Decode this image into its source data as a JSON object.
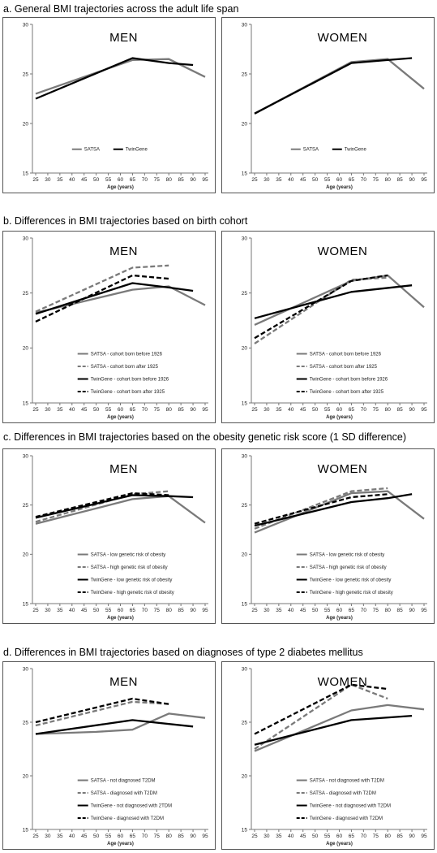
{
  "sections": [
    {
      "title": "a. General BMI trajectories across the adult life span"
    },
    {
      "title": "b. Differences in BMI trajectories based on birth cohort"
    },
    {
      "title": "c. Differences in BMI trajectories based on the obesity genetic risk score (1 SD difference)"
    },
    {
      "title": "d. Differences in BMI trajectories  based on diagnoses of type 2 diabetes mellitus"
    }
  ],
  "style_colors": {
    "gray": "#7a7a7a",
    "black": "#000000",
    "frame": "#555555"
  },
  "chart_data": [
    {
      "id": "a-men",
      "type": "line",
      "panel_label": "MEN",
      "xlabel": "Age (years)",
      "ylabel": "",
      "x": [
        25,
        30,
        35,
        40,
        45,
        50,
        55,
        60,
        65,
        70,
        75,
        80,
        85,
        90,
        95
      ],
      "ylim": [
        15,
        30
      ],
      "yticks": [
        15,
        20,
        25,
        30
      ],
      "legend_position": "bottom",
      "legend_layout": "row",
      "series": [
        {
          "name": "SATSA",
          "color": "gray",
          "dash": "solid",
          "points": [
            [
              25,
              23.0
            ],
            [
              65,
              26.4
            ],
            [
              80,
              26.5
            ],
            [
              95,
              24.7
            ]
          ]
        },
        {
          "name": "TwinGene",
          "color": "black",
          "dash": "solid",
          "points": [
            [
              25,
              22.5
            ],
            [
              65,
              26.6
            ],
            [
              80,
              26.1
            ],
            [
              90,
              25.9
            ]
          ]
        }
      ]
    },
    {
      "id": "a-women",
      "type": "line",
      "panel_label": "WOMEN",
      "xlabel": "Age (years)",
      "ylabel": "",
      "x": [
        25,
        30,
        35,
        40,
        45,
        50,
        55,
        60,
        65,
        70,
        75,
        80,
        85,
        90,
        95
      ],
      "ylim": [
        15,
        30
      ],
      "yticks": [
        15,
        20,
        25,
        30
      ],
      "legend_position": "bottom",
      "legend_layout": "row",
      "series": [
        {
          "name": "SATSA",
          "color": "gray",
          "dash": "solid",
          "points": [
            [
              25,
              21.0
            ],
            [
              65,
              26.2
            ],
            [
              80,
              26.5
            ],
            [
              95,
              23.5
            ]
          ]
        },
        {
          "name": "TwinGene",
          "color": "black",
          "dash": "solid",
          "points": [
            [
              25,
              21.0
            ],
            [
              65,
              26.1
            ],
            [
              80,
              26.4
            ],
            [
              90,
              26.6
            ]
          ]
        }
      ]
    },
    {
      "id": "b-men",
      "type": "line",
      "panel_label": "MEN",
      "xlabel": "Age (years)",
      "ylabel": "",
      "x": [
        25,
        30,
        35,
        40,
        45,
        50,
        55,
        60,
        65,
        70,
        75,
        80,
        85,
        90,
        95
      ],
      "ylim": [
        15,
        30
      ],
      "yticks": [
        15,
        20,
        25,
        30
      ],
      "legend_position": "bottom",
      "legend_layout": "column",
      "series": [
        {
          "name": "SATSA - cohort born before 1926",
          "color": "gray",
          "dash": "solid",
          "points": [
            [
              25,
              23.2
            ],
            [
              65,
              25.3
            ],
            [
              80,
              25.6
            ],
            [
              95,
              23.9
            ]
          ]
        },
        {
          "name": "SATSA - cohort born after 1925",
          "color": "gray",
          "dash": "dashed",
          "points": [
            [
              25,
              23.3
            ],
            [
              65,
              27.3
            ],
            [
              80,
              27.5
            ]
          ]
        },
        {
          "name": "TwinGene - cohort born before 1926",
          "color": "black",
          "dash": "solid",
          "points": [
            [
              25,
              23.1
            ],
            [
              65,
              25.9
            ],
            [
              80,
              25.5
            ],
            [
              90,
              25.2
            ]
          ]
        },
        {
          "name": "TwinGene - cohort born after 1925",
          "color": "black",
          "dash": "dashed",
          "points": [
            [
              25,
              22.4
            ],
            [
              65,
              26.6
            ],
            [
              80,
              26.3
            ]
          ]
        }
      ]
    },
    {
      "id": "b-women",
      "type": "line",
      "panel_label": "WOMEN",
      "xlabel": "Age (years)",
      "ylabel": "",
      "x": [
        25,
        30,
        35,
        40,
        45,
        50,
        55,
        60,
        65,
        70,
        75,
        80,
        85,
        90,
        95
      ],
      "ylim": [
        15,
        30
      ],
      "yticks": [
        15,
        20,
        25,
        30
      ],
      "legend_position": "bottom",
      "legend_layout": "column",
      "series": [
        {
          "name": "SATSA - cohort born before 1926",
          "color": "gray",
          "dash": "solid",
          "points": [
            [
              25,
              22.1
            ],
            [
              65,
              26.1
            ],
            [
              80,
              26.6
            ],
            [
              95,
              23.7
            ]
          ]
        },
        {
          "name": "SATSA - cohort born after 1925",
          "color": "gray",
          "dash": "dashed",
          "points": [
            [
              25,
              20.4
            ],
            [
              65,
              26.2
            ],
            [
              80,
              26.4
            ]
          ]
        },
        {
          "name": "TwinGene - cohort born before 1926",
          "color": "black",
          "dash": "solid",
          "points": [
            [
              25,
              22.7
            ],
            [
              65,
              25.1
            ],
            [
              90,
              25.7
            ]
          ]
        },
        {
          "name": "TwinGene - cohort born after 1925",
          "color": "black",
          "dash": "dashed",
          "points": [
            [
              25,
              20.9
            ],
            [
              65,
              26.1
            ],
            [
              80,
              26.6
            ]
          ]
        }
      ]
    },
    {
      "id": "c-men",
      "type": "line",
      "panel_label": "MEN",
      "xlabel": "Age (years)",
      "ylabel": "",
      "x": [
        25,
        30,
        35,
        40,
        45,
        50,
        55,
        60,
        65,
        70,
        75,
        80,
        85,
        90,
        95
      ],
      "ylim": [
        15,
        30
      ],
      "yticks": [
        15,
        20,
        25,
        30
      ],
      "legend_position": "bottom",
      "legend_layout": "column",
      "series": [
        {
          "name": "SATSA - low genetic risk of obesity",
          "color": "gray",
          "dash": "solid",
          "points": [
            [
              25,
              23.1
            ],
            [
              65,
              25.6
            ],
            [
              80,
              25.9
            ],
            [
              95,
              23.2
            ]
          ]
        },
        {
          "name": "SATSA - high genetic risk of obesity",
          "color": "gray",
          "dash": "dashed",
          "points": [
            [
              25,
              23.3
            ],
            [
              65,
              26.1
            ],
            [
              80,
              26.4
            ]
          ]
        },
        {
          "name": "TwinGene - low genetic risk of obesity",
          "color": "black",
          "dash": "solid",
          "points": [
            [
              25,
              23.7
            ],
            [
              65,
              26.0
            ],
            [
              80,
              25.9
            ],
            [
              90,
              25.8
            ]
          ]
        },
        {
          "name": "TwinGene - high genetic risk of obesity",
          "color": "black",
          "dash": "dashed",
          "points": [
            [
              25,
              23.8
            ],
            [
              65,
              26.2
            ],
            [
              80,
              26.0
            ]
          ]
        }
      ]
    },
    {
      "id": "c-women",
      "type": "line",
      "panel_label": "WOMEN",
      "xlabel": "Age (years)",
      "ylabel": "",
      "x": [
        25,
        30,
        35,
        40,
        45,
        50,
        55,
        60,
        65,
        70,
        75,
        80,
        85,
        90,
        95
      ],
      "ylim": [
        15,
        30
      ],
      "yticks": [
        15,
        20,
        25,
        30
      ],
      "legend_position": "bottom",
      "legend_layout": "column",
      "series": [
        {
          "name": "SATSA - low genetic risk of obesity",
          "color": "gray",
          "dash": "solid",
          "points": [
            [
              25,
              22.2
            ],
            [
              65,
              26.2
            ],
            [
              80,
              26.4
            ],
            [
              95,
              23.6
            ]
          ]
        },
        {
          "name": "SATSA - high genetic risk of obesity",
          "color": "gray",
          "dash": "dashed",
          "points": [
            [
              25,
              22.6
            ],
            [
              65,
              26.4
            ],
            [
              80,
              26.7
            ]
          ]
        },
        {
          "name": "TwinGene - low genetic risk of obesity",
          "color": "black",
          "dash": "solid",
          "points": [
            [
              25,
              22.9
            ],
            [
              65,
              25.3
            ],
            [
              80,
              25.7
            ],
            [
              90,
              26.1
            ]
          ]
        },
        {
          "name": "TwinGene - high genetic risk of obesity",
          "color": "black",
          "dash": "dashed",
          "points": [
            [
              25,
              23.1
            ],
            [
              65,
              25.8
            ],
            [
              80,
              26.1
            ]
          ]
        }
      ]
    },
    {
      "id": "d-men",
      "type": "line",
      "panel_label": "MEN",
      "xlabel": "Age (years)",
      "ylabel": "",
      "x": [
        25,
        30,
        35,
        40,
        45,
        50,
        55,
        60,
        65,
        70,
        75,
        80,
        85,
        90,
        95
      ],
      "ylim": [
        15,
        30
      ],
      "yticks": [
        15,
        20,
        25,
        30
      ],
      "legend_position": "bottom",
      "legend_layout": "column",
      "series": [
        {
          "name": "SATSA - not diagnosed T2DM",
          "color": "gray",
          "dash": "solid",
          "points": [
            [
              25,
              23.9
            ],
            [
              50,
              24.1
            ],
            [
              65,
              24.3
            ],
            [
              80,
              25.8
            ],
            [
              95,
              25.4
            ]
          ]
        },
        {
          "name": "SATSA - diagnosed with T2DM",
          "color": "gray",
          "dash": "dashed",
          "points": [
            [
              25,
              24.7
            ],
            [
              65,
              26.9
            ],
            [
              80,
              26.7
            ]
          ]
        },
        {
          "name": "TwinGene - not diagnosed with 2TDM",
          "color": "black",
          "dash": "solid",
          "points": [
            [
              25,
              23.9
            ],
            [
              65,
              25.2
            ],
            [
              90,
              24.6
            ]
          ]
        },
        {
          "name": "TwinGene - diagnosed with T2DM",
          "color": "black",
          "dash": "dashed",
          "points": [
            [
              25,
              25.0
            ],
            [
              65,
              27.2
            ],
            [
              80,
              26.7
            ]
          ]
        }
      ]
    },
    {
      "id": "d-women",
      "type": "line",
      "panel_label": "WOMEN",
      "xlabel": "Age (years)",
      "ylabel": "",
      "x": [
        25,
        30,
        35,
        40,
        45,
        50,
        55,
        60,
        65,
        70,
        75,
        80,
        85,
        90,
        95
      ],
      "ylim": [
        15,
        30
      ],
      "yticks": [
        15,
        20,
        25,
        30
      ],
      "legend_position": "bottom",
      "legend_layout": "column",
      "series": [
        {
          "name": "SATSA - not diagnosed with T2DM",
          "color": "gray",
          "dash": "solid",
          "points": [
            [
              25,
              22.3
            ],
            [
              65,
              26.1
            ],
            [
              80,
              26.6
            ],
            [
              95,
              26.2
            ]
          ]
        },
        {
          "name": "SATSA - diagnosed with T2DM",
          "color": "gray",
          "dash": "dashed",
          "points": [
            [
              25,
              22.5
            ],
            [
              65,
              28.5
            ],
            [
              80,
              27.2
            ]
          ]
        },
        {
          "name": "TwinGene - not diagnosed with T2DM",
          "color": "black",
          "dash": "solid",
          "points": [
            [
              25,
              22.9
            ],
            [
              65,
              25.2
            ],
            [
              90,
              25.6
            ]
          ]
        },
        {
          "name": "TwinGene - diagnosed with T2DM",
          "color": "black",
          "dash": "dashed",
          "points": [
            [
              25,
              23.9
            ],
            [
              65,
              28.5
            ],
            [
              80,
              28.1
            ]
          ]
        }
      ]
    }
  ]
}
